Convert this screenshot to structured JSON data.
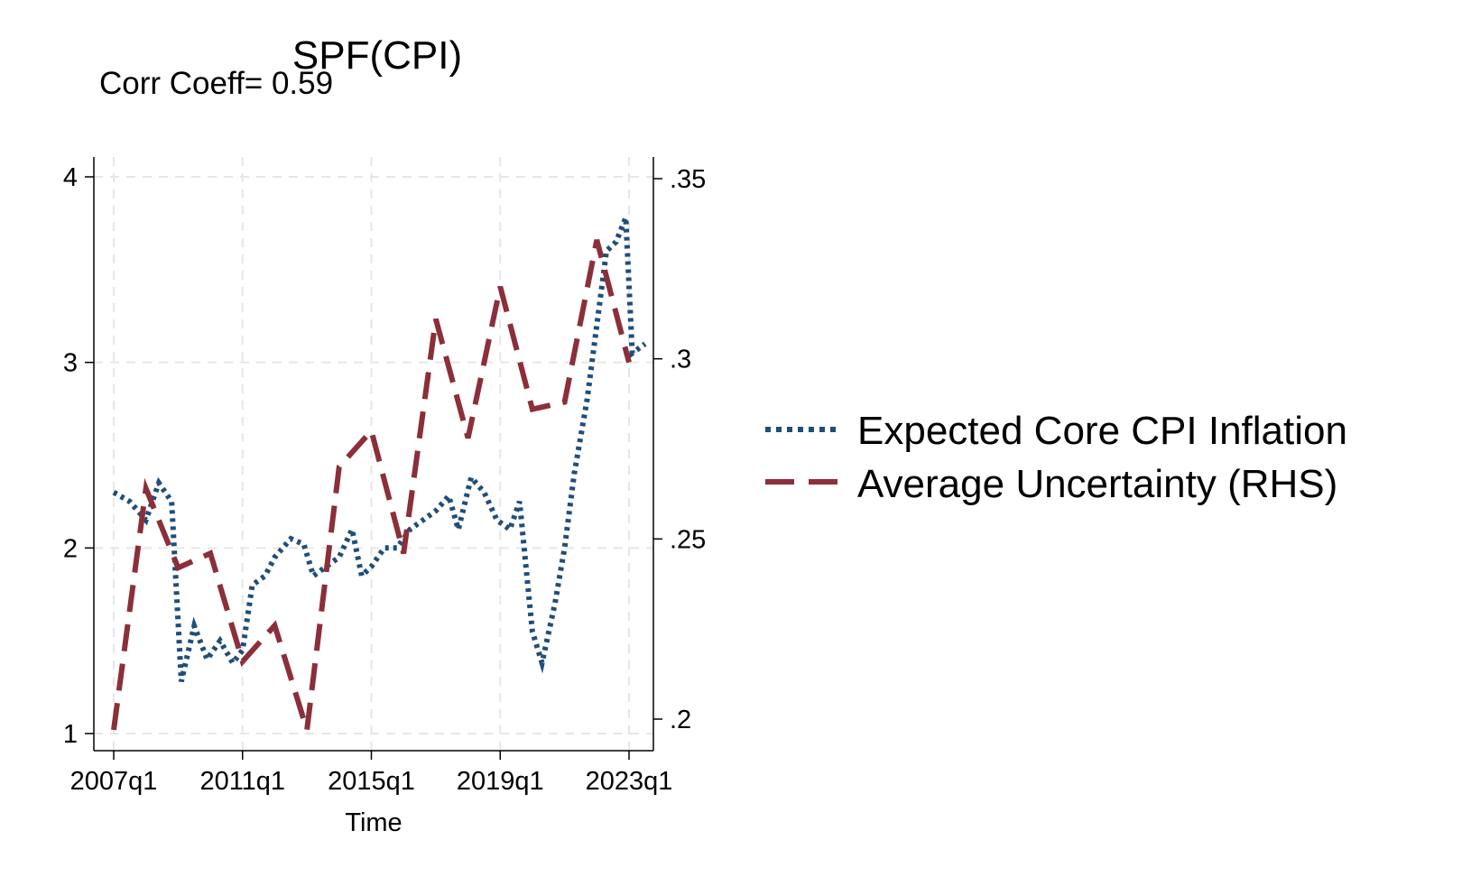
{
  "chart_data": {
    "type": "line",
    "title": "SPF(CPI)",
    "subtitle": "Corr Coeff= 0.59",
    "xlabel": "Time",
    "ylabel": "",
    "x_ticks": [
      "2007q1",
      "2011q1",
      "2015q1",
      "2019q1",
      "2023q1"
    ],
    "x_range": [
      2007.0,
      2023.5
    ],
    "ylim_left": [
      1,
      4
    ],
    "ylim_right": [
      0.2,
      0.35
    ],
    "y_ticks_left": [
      "1",
      "2",
      "3",
      "4"
    ],
    "y_ticks_right": [
      ".2",
      ".25",
      ".3",
      ".35"
    ],
    "grid": true,
    "legend_position": "right",
    "series": [
      {
        "name": "Expected Core CPI Inflation",
        "axis": "left",
        "style": "dotted",
        "color": "#1f4e79",
        "x": [
          2007.0,
          2007.5,
          2008.0,
          2008.4,
          2008.8,
          2009.1,
          2009.5,
          2009.9,
          2010.3,
          2010.7,
          2011.0,
          2011.3,
          2011.7,
          2012.0,
          2012.5,
          2012.9,
          2013.2,
          2013.6,
          2014.0,
          2014.4,
          2014.7,
          2015.0,
          2015.4,
          2015.8,
          2016.2,
          2016.6,
          2017.0,
          2017.4,
          2017.7,
          2018.1,
          2018.5,
          2018.9,
          2019.3,
          2019.6,
          2020.0,
          2020.3,
          2020.7,
          2021.0,
          2021.3,
          2021.7,
          2022.0,
          2022.3,
          2022.6,
          2022.9,
          2023.1,
          2023.5
        ],
        "y": [
          2.3,
          2.25,
          2.15,
          2.35,
          2.25,
          1.28,
          1.58,
          1.4,
          1.5,
          1.38,
          1.45,
          1.8,
          1.85,
          1.95,
          2.05,
          2.02,
          1.85,
          1.9,
          1.95,
          2.1,
          1.85,
          1.9,
          2.0,
          2.0,
          2.1,
          2.15,
          2.2,
          2.28,
          2.1,
          2.38,
          2.3,
          2.15,
          2.1,
          2.25,
          1.55,
          1.38,
          1.7,
          2.0,
          2.4,
          2.8,
          3.2,
          3.6,
          3.65,
          3.78,
          3.05,
          3.1
        ]
      },
      {
        "name": "Average Uncertainty (RHS)",
        "axis": "right",
        "style": "dashed",
        "color": "#8b2f3a",
        "x": [
          2007.0,
          2008.0,
          2009.0,
          2010.0,
          2011.0,
          2012.0,
          2013.0,
          2014.0,
          2015.0,
          2016.0,
          2017.0,
          2018.0,
          2019.0,
          2020.0,
          2021.0,
          2022.0,
          2023.0
        ],
        "y": [
          0.197,
          0.264,
          0.242,
          0.246,
          0.216,
          0.226,
          0.197,
          0.27,
          0.28,
          0.246,
          0.311,
          0.278,
          0.32,
          0.286,
          0.288,
          0.333,
          0.299
        ]
      }
    ]
  }
}
